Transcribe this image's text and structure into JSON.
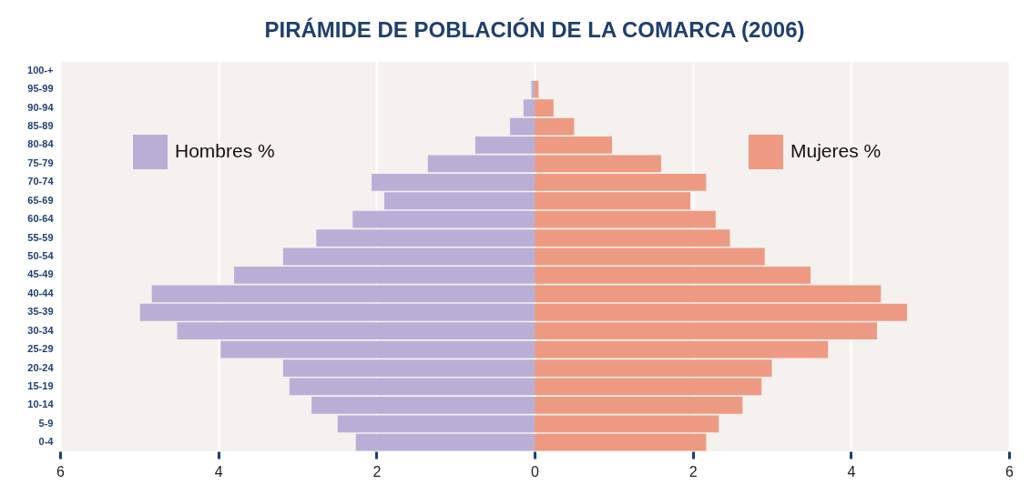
{
  "chart_data": {
    "type": "bar",
    "orientation": "horizontal",
    "title": "PIRÁMIDE DE POBLACIÓN DE LA COMARCA (2006)",
    "categories": [
      "100-+",
      "95-99",
      "90-94",
      "85-89",
      "80-84",
      "75-79",
      "70-74",
      "65-69",
      "60-64",
      "55-59",
      "50-54",
      "45-49",
      "40-44",
      "35-39",
      "30-34",
      "25-29",
      "20-24",
      "15-19",
      "10-14",
      "5-9",
      "0-4"
    ],
    "series": [
      {
        "name": "Hombres %",
        "color": "#b9afd6",
        "values": [
          0,
          -0.04,
          -0.14,
          -0.31,
          -0.75,
          -1.35,
          -2.06,
          -1.9,
          -2.3,
          -2.76,
          -3.18,
          -3.8,
          -4.84,
          -4.99,
          -4.52,
          -3.97,
          -3.18,
          -3.1,
          -2.82,
          -2.49,
          -2.26
        ]
      },
      {
        "name": "Mujeres %",
        "color": "#ee9a82",
        "values": [
          0,
          0.05,
          0.24,
          0.5,
          0.98,
          1.6,
          2.17,
          1.97,
          2.29,
          2.47,
          2.91,
          3.49,
          4.38,
          4.71,
          4.33,
          3.71,
          3.0,
          2.87,
          2.63,
          2.33,
          2.17
        ]
      }
    ],
    "xlim": [
      -6,
      6
    ],
    "xticks": [
      {
        "value": -6,
        "label": "6"
      },
      {
        "value": -4,
        "label": "4"
      },
      {
        "value": -2,
        "label": "2"
      },
      0,
      2,
      4,
      6
    ],
    "grid": "x",
    "legend": "top",
    "stacked": true
  }
}
